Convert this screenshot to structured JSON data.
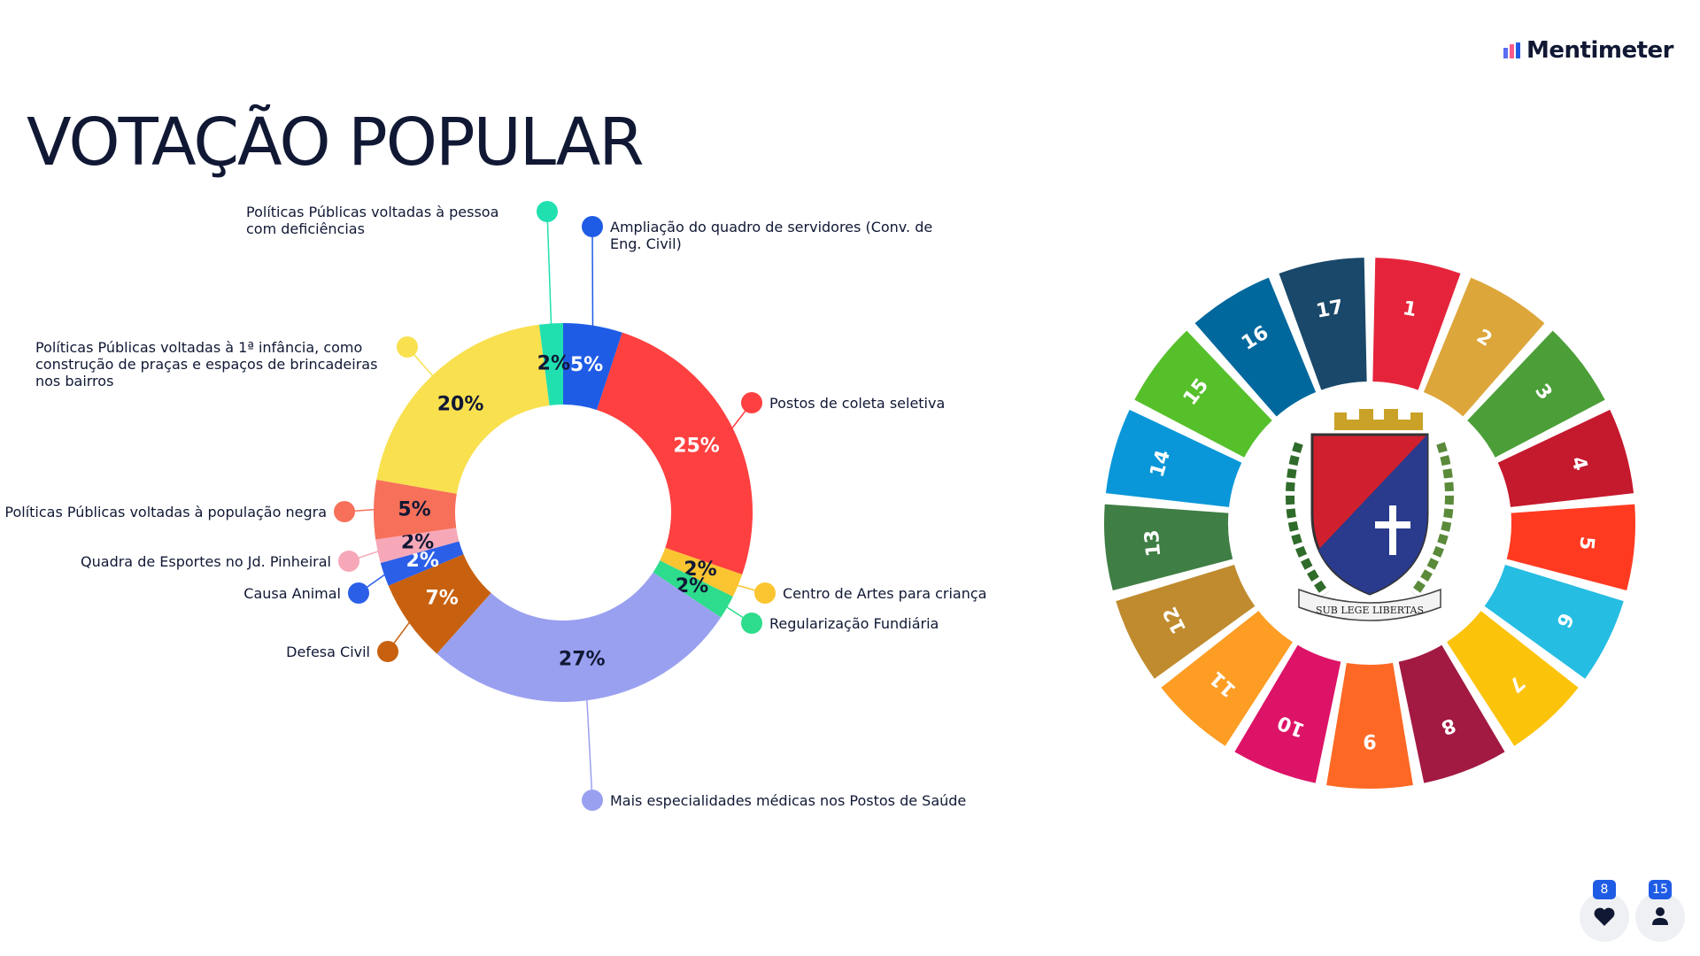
{
  "header": {
    "title": "VOTAÇÃO POPULAR",
    "brand": "Mentimeter"
  },
  "chart_data": {
    "type": "donut",
    "categories": [
      "Ampliação do quadro de servidores (Conv. de Eng. Civil)",
      "Postos de coleta seletiva",
      "Centro de Artes para criança",
      "Regularização Fundiária",
      "Mais especialidades médicas nos Postos de Saúde",
      "Defesa Civil",
      "Causa Animal",
      "Quadra de Esportes no Jd. Pinheiral",
      "Políticas Públicas voltadas à população negra",
      "Políticas Públicas voltadas à 1ª infância, como construção de praças e espaços de brincadeiras nos bairros",
      "Políticas Públicas voltadas à pessoa com deficiências"
    ],
    "values": [
      5,
      25,
      2,
      2,
      27,
      7,
      2,
      2,
      5,
      20,
      2
    ],
    "value_labels": [
      "5%",
      "25%",
      "2%",
      "2%",
      "27%",
      "7%",
      "2%",
      "2%",
      "5%",
      "20%",
      "2%"
    ],
    "colors": [
      "#1f5ce6",
      "#ff4040",
      "#fbc531",
      "#2ddc8c",
      "#9aa0f0",
      "#c8610f",
      "#2b5fe8",
      "#f7a8b8",
      "#f7705a",
      "#f9e04f",
      "#21e0b0"
    ]
  },
  "sdg_wheel": {
    "goals": [
      "1",
      "2",
      "3",
      "4",
      "5",
      "6",
      "7",
      "8",
      "9",
      "10",
      "11",
      "12",
      "13",
      "14",
      "15",
      "16",
      "17"
    ],
    "motto": "SUB LEGE LIBERTAS"
  },
  "reactions": {
    "likes": 8,
    "participants": 15
  }
}
